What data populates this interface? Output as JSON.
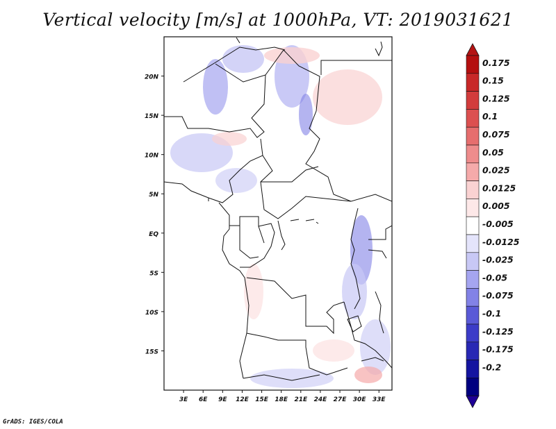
{
  "title": "Vertical velocity [m/s] at 1000hPa, VT: 2019031621",
  "credit": "GrADS: IGES/COLA",
  "map": {
    "lat_labels": [
      "20N",
      "15N",
      "10N",
      "5N",
      "EQ",
      "5S",
      "10S",
      "15S"
    ],
    "lon_labels": [
      "3E",
      "6E",
      "9E",
      "12E",
      "15E",
      "18E",
      "21E",
      "24E",
      "27E",
      "30E",
      "33E"
    ],
    "lat_range": [
      -20,
      25
    ],
    "lon_range": [
      0,
      35
    ]
  },
  "colorbar": {
    "labels": [
      "0.175",
      "0.15",
      "0.125",
      "0.1",
      "0.075",
      "0.05",
      "0.025",
      "0.0125",
      "0.005",
      "-0.005",
      "-0.0125",
      "-0.025",
      "-0.05",
      "-0.075",
      "-0.1",
      "-0.125",
      "-0.175",
      "-0.2"
    ],
    "colors": [
      "#b40f0f",
      "#c82828",
      "#d23c3c",
      "#dc5050",
      "#e66e6e",
      "#ee8c8c",
      "#f5aaaa",
      "#fad2d2",
      "#fde8e8",
      "#ffffff",
      "#e4e4fb",
      "#c8c8f5",
      "#a5a5f0",
      "#8282e6",
      "#5a5ad7",
      "#3c3cc8",
      "#2828b4",
      "#1414a0",
      "#000080"
    ],
    "top_color": "#b41414",
    "bottom_color": "#1e0096"
  }
}
